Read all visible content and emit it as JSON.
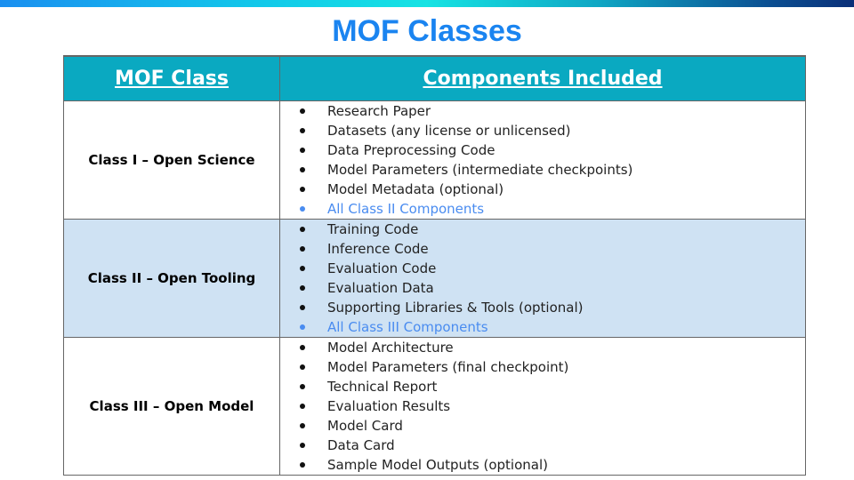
{
  "title": "MOF Classes",
  "colors": {
    "header_bg": "#0aa9c1",
    "class2_bg": "#cfe2f3",
    "title": "#1a84f0",
    "link_blue": "#4a8cf0"
  },
  "table": {
    "headers": [
      "MOF Class",
      "Components Included"
    ],
    "rows": [
      {
        "class": "Class I – Open Science",
        "items": [
          "Research Paper",
          "Datasets (any license or unlicensed)",
          "Data Preprocessing Code",
          "Model Parameters (intermediate checkpoints)",
          "Model Metadata (optional)"
        ],
        "inherit": "All Class II Components"
      },
      {
        "class": "Class II – Open Tooling",
        "items": [
          "Training Code",
          "Inference Code",
          "Evaluation Code",
          "Evaluation Data",
          "Supporting Libraries & Tools (optional)"
        ],
        "inherit": "All Class III Components"
      },
      {
        "class": "Class III – Open Model",
        "items": [
          "Model Architecture",
          "Model Parameters (final checkpoint)",
          "Technical Report",
          "Evaluation Results",
          "Model Card",
          "Data Card",
          "Sample Model Outputs (optional)"
        ]
      }
    ]
  }
}
